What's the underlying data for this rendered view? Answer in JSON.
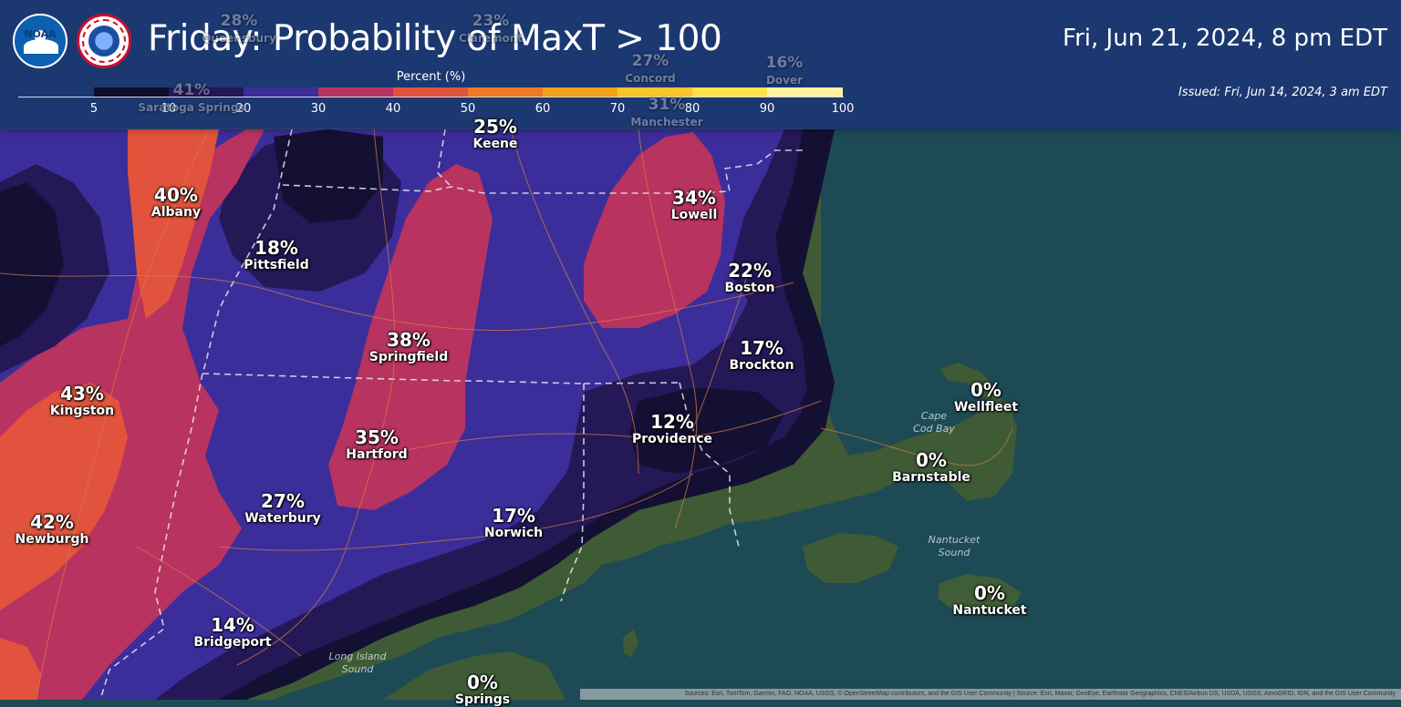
{
  "header": {
    "title": "Friday: Probability of MaxT > 100",
    "valid_time": "Fri, Jun 21, 2024, 8 pm EDT",
    "issued": "Issued: Fri, Jun 14, 2024, 3 am EDT",
    "logos": [
      "noaa-logo",
      "nws-logo"
    ],
    "noaa_text": "NOAA"
  },
  "legend": {
    "title": "Percent (%)",
    "ticks": [
      "5",
      "10",
      "20",
      "30",
      "40",
      "50",
      "60",
      "70",
      "80",
      "90",
      "100"
    ],
    "colors": [
      "#0f0d2a",
      "#241857",
      "#3b2e9a",
      "#b8335f",
      "#e1533c",
      "#f07a24",
      "#f6a11a",
      "#f9c62a",
      "#fde14b",
      "#fff3a0"
    ]
  },
  "colors": {
    "water": "#1d4a54",
    "land": "#3b5a34",
    "header_band": "#1c3378",
    "border_line": "#e0e0e0",
    "road": "#d07a4a"
  },
  "cities": [
    {
      "id": "albany",
      "pct": "40%",
      "name": "Albany"
    },
    {
      "id": "pittsfield",
      "pct": "18%",
      "name": "Pittsfield"
    },
    {
      "id": "lowell",
      "pct": "34%",
      "name": "Lowell"
    },
    {
      "id": "boston",
      "pct": "22%",
      "name": "Boston"
    },
    {
      "id": "springfield",
      "pct": "38%",
      "name": "Springfield"
    },
    {
      "id": "brockton",
      "pct": "17%",
      "name": "Brockton"
    },
    {
      "id": "kingston",
      "pct": "43%",
      "name": "Kingston"
    },
    {
      "id": "providence",
      "pct": "12%",
      "name": "Providence"
    },
    {
      "id": "hartford",
      "pct": "35%",
      "name": "Hartford"
    },
    {
      "id": "wellfleet",
      "pct": "0%",
      "name": "Wellfleet"
    },
    {
      "id": "barnstable",
      "pct": "0%",
      "name": "Barnstable"
    },
    {
      "id": "waterbury",
      "pct": "27%",
      "name": "Waterbury"
    },
    {
      "id": "norwich",
      "pct": "17%",
      "name": "Norwich"
    },
    {
      "id": "newburgh",
      "pct": "42%",
      "name": "Newburgh"
    },
    {
      "id": "nantucket",
      "pct": "0%",
      "name": "Nantucket"
    },
    {
      "id": "bridgeport",
      "pct": "14%",
      "name": "Bridgeport"
    },
    {
      "id": "springs",
      "pct": "0%",
      "name": "Springs"
    },
    {
      "id": "keene",
      "pct": "25%",
      "name": "Keene"
    }
  ],
  "faded_cities": [
    {
      "id": "glens-falls",
      "pct": "28%",
      "name": "Queensbury"
    },
    {
      "id": "claremont",
      "pct": "23%",
      "name": "Claremont"
    },
    {
      "id": "concord",
      "pct": "27%",
      "name": "Concord"
    },
    {
      "id": "dover",
      "pct": "16%",
      "name": "Dover"
    },
    {
      "id": "manchester",
      "pct": "31%",
      "name": "Manchester"
    },
    {
      "id": "saratoga",
      "pct": "41%",
      "name": "Saratoga Springs"
    }
  ],
  "water_labels": [
    {
      "id": "cape-cod-bay",
      "text": "Cape\nCod Bay"
    },
    {
      "id": "nantucket-sound",
      "text": "Nantucket\nSound"
    },
    {
      "id": "long-island-sound",
      "text": "Long Island\nSound"
    }
  ],
  "attribution": "Sources: Esri, TomTom, Garmin, FAO, NOAA, USGS, © OpenStreetMap contributors, and the GIS User Community | Source: Esri, Maxar, GeoEye, Earthstar Geographics, CNES/Airbus DS, USDA, USGS, AeroGRID, IGN, and the GIS User Community"
}
